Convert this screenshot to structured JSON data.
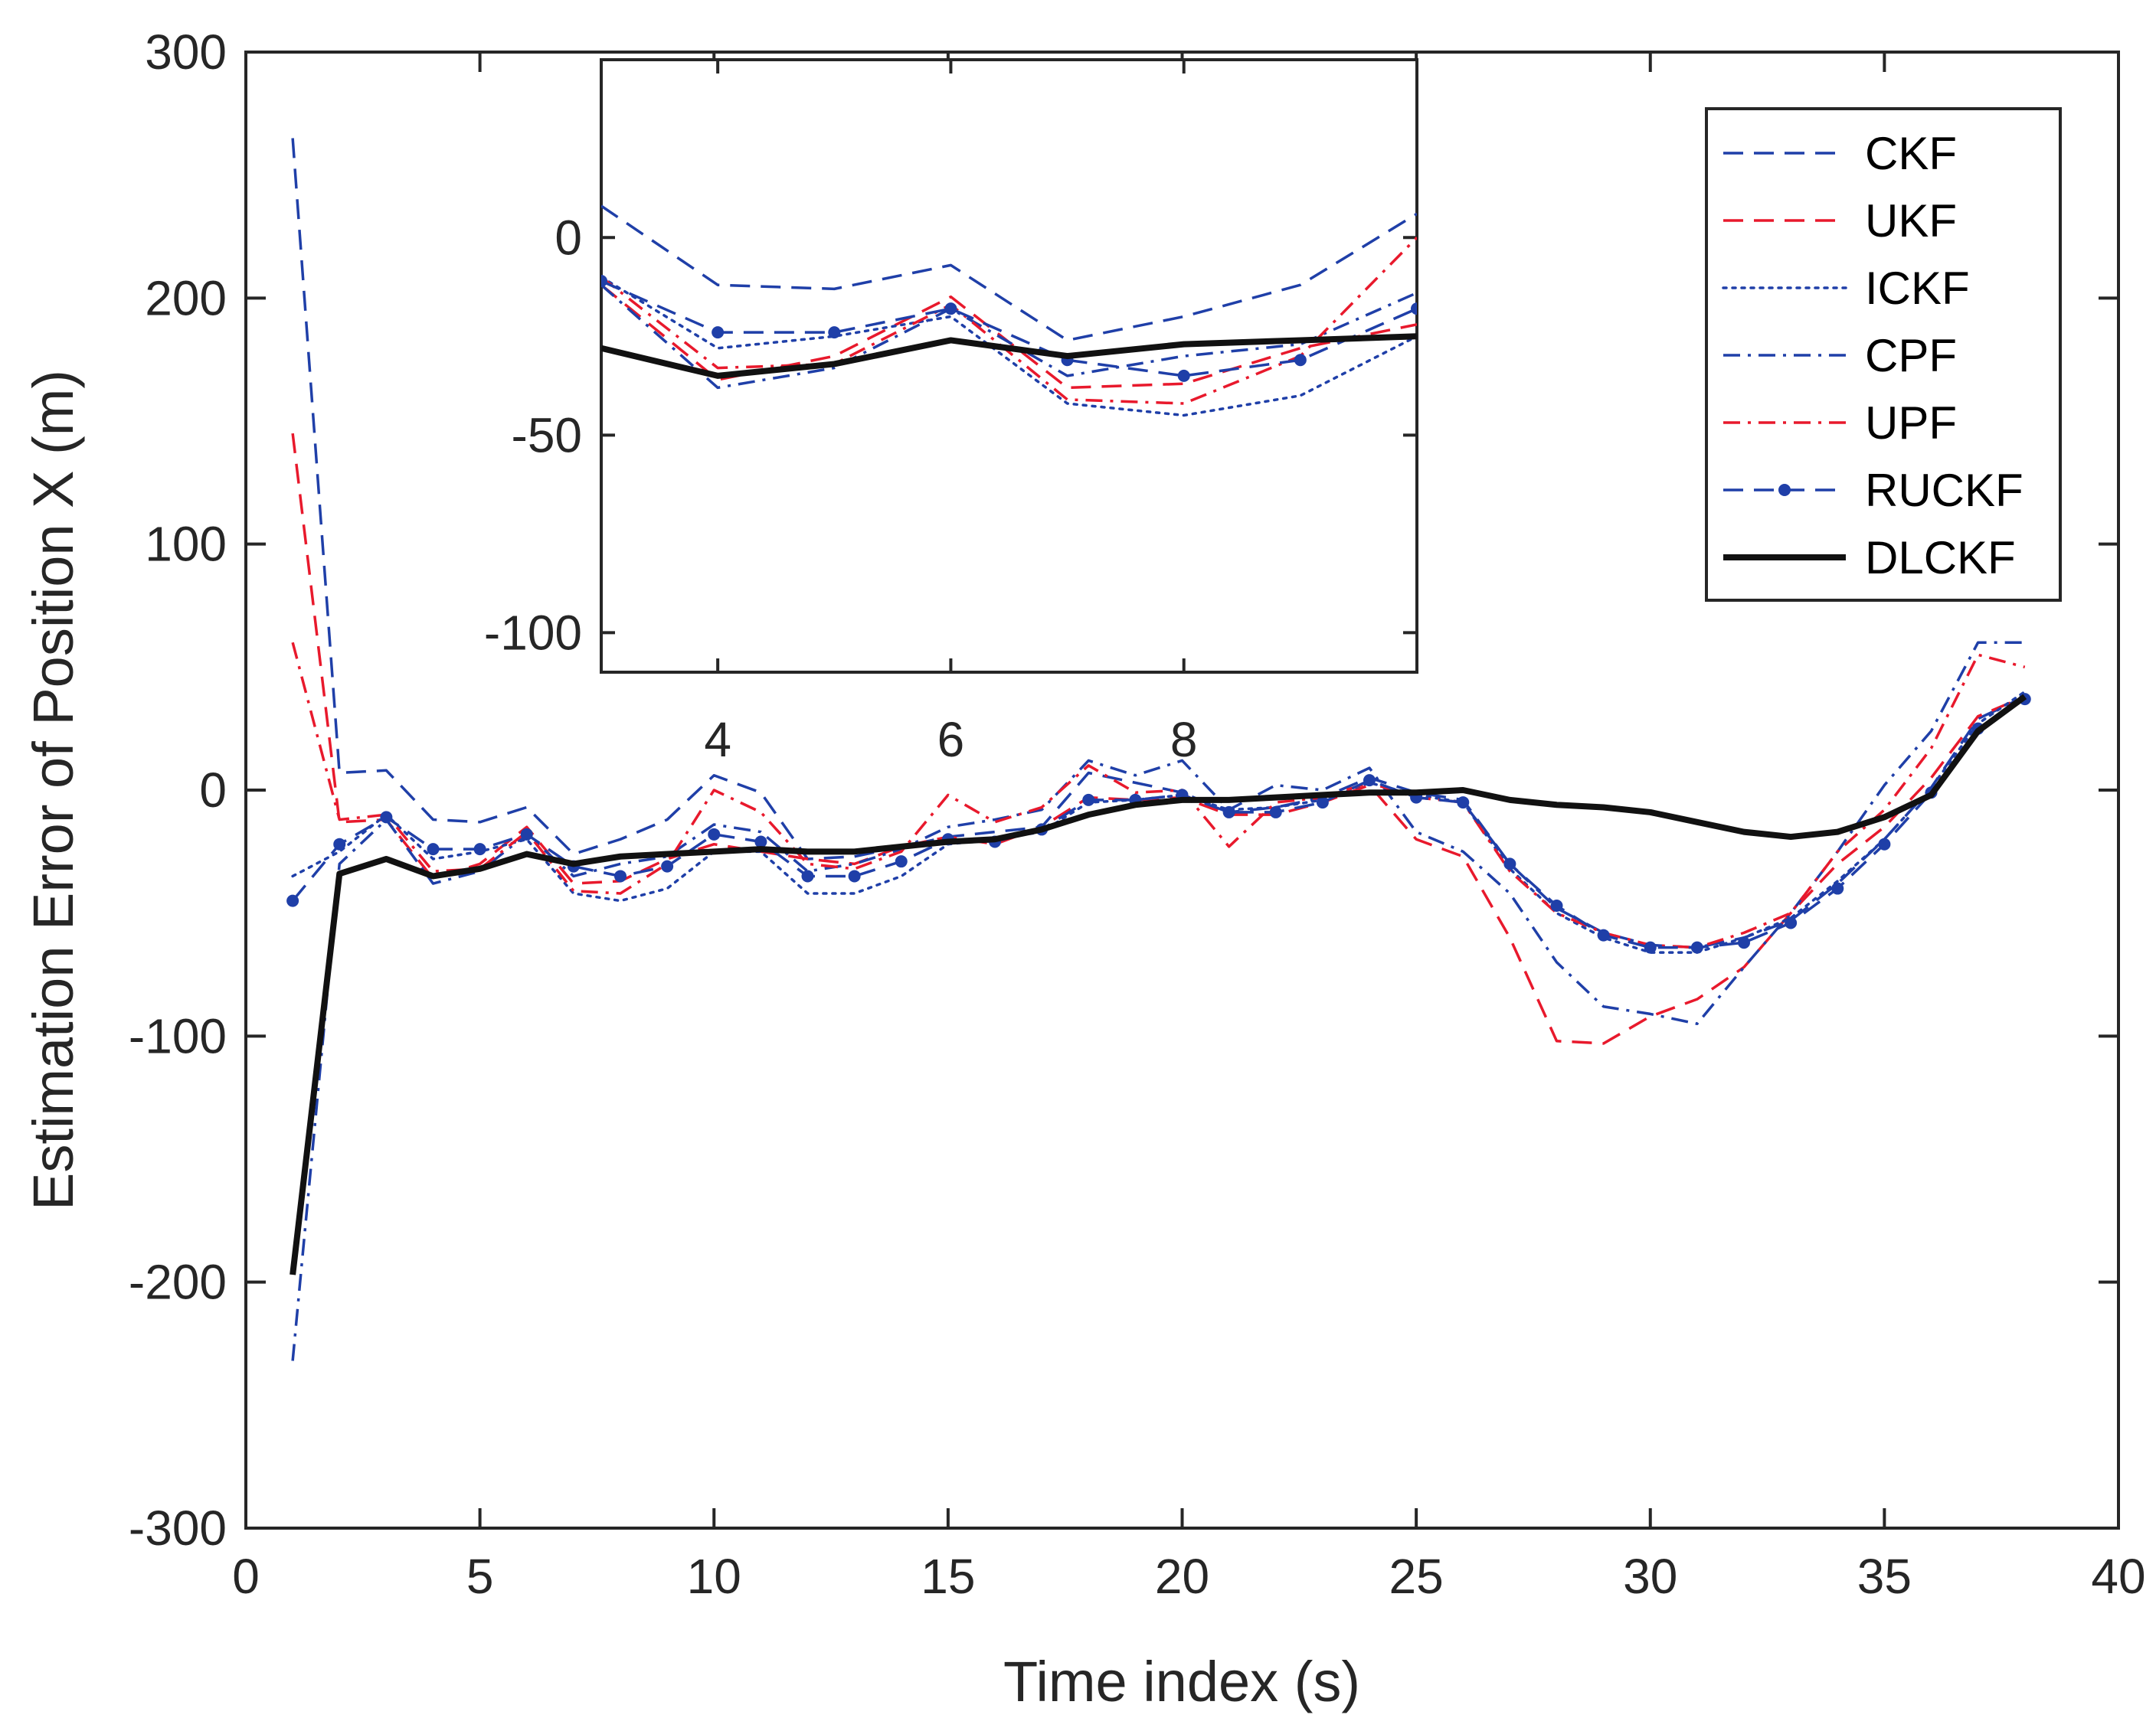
{
  "chart_data": {
    "type": "line",
    "xlabel": "Time index (s)",
    "ylabel": "Estimation Error of Position X (m)",
    "xlim": [
      0,
      40
    ],
    "ylim": [
      -300,
      300
    ],
    "xticks": [
      0,
      5,
      10,
      15,
      20,
      25,
      30,
      35,
      40
    ],
    "yticks": [
      -300,
      -200,
      -100,
      0,
      100,
      200,
      300
    ],
    "grid": false,
    "legend_position": "top-right",
    "x": [
      1,
      2,
      3,
      4,
      5,
      6,
      7,
      8,
      9,
      10,
      11,
      12,
      13,
      14,
      15,
      16,
      17,
      18,
      19,
      20,
      21,
      22,
      23,
      24,
      25,
      26,
      27,
      28,
      29,
      30,
      31,
      32,
      33,
      34,
      35,
      36,
      37,
      38
    ],
    "series": [
      {
        "name": "CKF",
        "color": "#1f3fa8",
        "style": "dashed",
        "values": [
          265,
          7,
          8,
          -12,
          -13,
          -7,
          -26,
          -20,
          -12,
          6,
          -1,
          -28,
          -27,
          -23,
          -19,
          -17,
          -15,
          7,
          3,
          -1,
          -9,
          -7,
          -3,
          5,
          -1,
          -4,
          -30,
          -48,
          -58,
          -63,
          -64,
          -60,
          -53,
          -38,
          -20,
          1,
          29,
          38
        ]
      },
      {
        "name": "UKF",
        "color": "#e8192c",
        "style": "dashed",
        "values": [
          145,
          -13,
          -12,
          -36,
          -30,
          -15,
          -38,
          -37,
          -28,
          -22,
          -25,
          -28,
          -30,
          -23,
          -19,
          -22,
          -15,
          -3,
          -4,
          -3,
          -10,
          -10,
          -5,
          2,
          -20,
          -27,
          -60,
          -102,
          -103,
          -92,
          -85,
          -72,
          -50,
          -30,
          -15,
          5,
          30,
          38
        ]
      },
      {
        "name": "ICKF",
        "color": "#1f3fa8",
        "style": "dotted",
        "values": [
          -35,
          -25,
          -10,
          -28,
          -25,
          -20,
          -42,
          -45,
          -40,
          -25,
          -25,
          -42,
          -42,
          -35,
          -22,
          -20,
          -17,
          -5,
          -4,
          -2,
          -8,
          -7,
          -4,
          3,
          -2,
          -5,
          -32,
          -50,
          -60,
          -66,
          -66,
          -60,
          -52,
          -37,
          -20,
          1,
          27,
          40
        ]
      },
      {
        "name": "CPF",
        "color": "#1f3fa8",
        "style": "dashdot",
        "values": [
          -232,
          -30,
          -12,
          -38,
          -33,
          -18,
          -35,
          -30,
          -27,
          -14,
          -17,
          -33,
          -30,
          -24,
          -15,
          -12,
          -8,
          12,
          6,
          12,
          -8,
          2,
          0,
          9,
          -17,
          -25,
          -42,
          -70,
          -88,
          -91,
          -95,
          -72,
          -50,
          -25,
          2,
          24,
          60,
          60
        ]
      },
      {
        "name": "UPF",
        "color": "#e8192c",
        "style": "dashdot",
        "values": [
          60,
          -12,
          -10,
          -33,
          -32,
          -17,
          -41,
          -42,
          -30,
          0,
          -9,
          -30,
          -32,
          -25,
          -2,
          -13,
          -7,
          10,
          -1,
          0,
          -23,
          -5,
          -3,
          3,
          -3,
          -5,
          -33,
          -50,
          -58,
          -63,
          -64,
          -58,
          -50,
          -25,
          -8,
          17,
          55,
          50
        ]
      },
      {
        "name": "RUCKF",
        "color": "#1f3fa8",
        "style": "dashed-dot-marker",
        "values": [
          -45,
          -22,
          -11,
          -24,
          -24,
          -18,
          -31,
          -35,
          -31,
          -18,
          -21,
          -35,
          -35,
          -29,
          -20,
          -21,
          -16,
          -4,
          -4,
          -2,
          -9,
          -9,
          -5,
          4,
          -3,
          -5,
          -30,
          -47,
          -59,
          -64,
          -64,
          -62,
          -54,
          -40,
          -22,
          -1,
          25,
          37
        ]
      },
      {
        "name": "DLCKF",
        "color": "#111111",
        "style": "solid",
        "values": [
          -197,
          -34,
          -28,
          -35,
          -32,
          -26,
          -30,
          -27,
          -26,
          -25,
          -24,
          -25,
          -25,
          -23,
          -21,
          -20,
          -16,
          -10,
          -6,
          -4,
          -4,
          -3,
          -2,
          -1,
          -1,
          0,
          -4,
          -6,
          -7,
          -9,
          -13,
          -17,
          -19,
          -17,
          -11,
          -2,
          24,
          38
        ]
      }
    ],
    "inset": {
      "xlim": [
        3,
        10
      ],
      "ylim": [
        -110,
        45
      ],
      "xticks": [
        4,
        6,
        8
      ],
      "yticks": [
        -100,
        -50,
        0
      ],
      "description_axis": "zoom of x 3..10"
    }
  }
}
